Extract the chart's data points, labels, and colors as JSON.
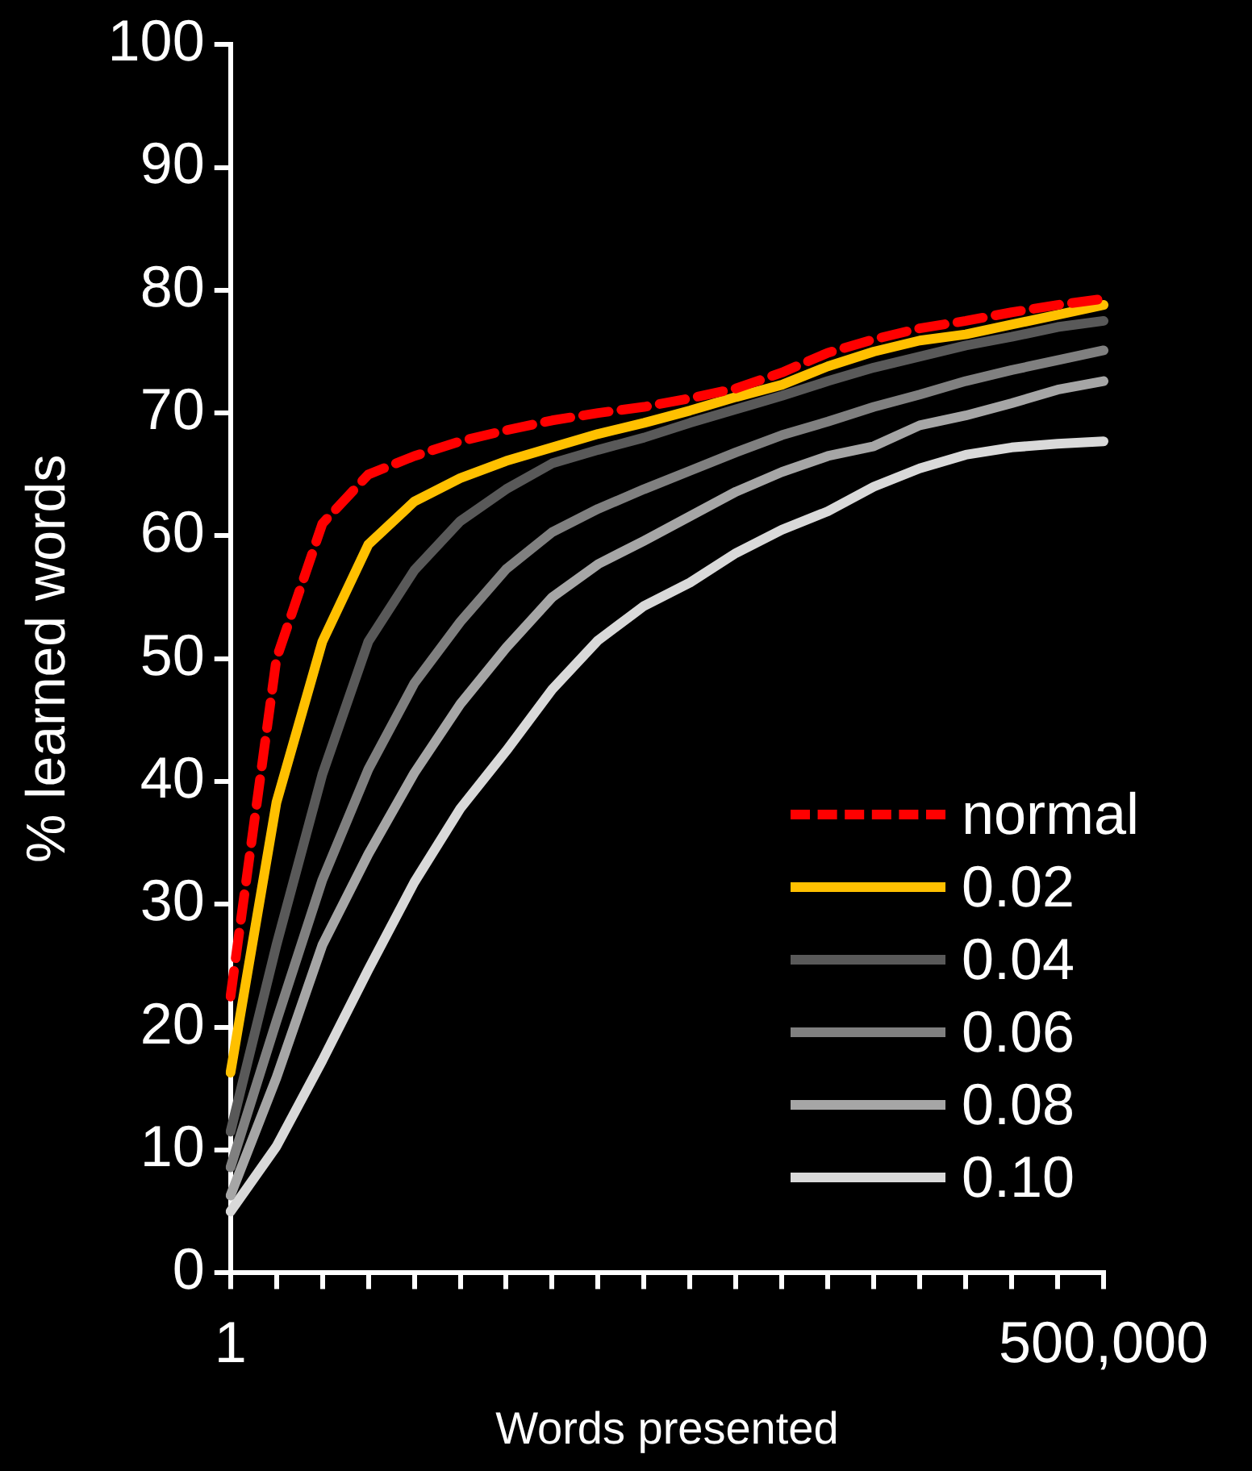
{
  "chart_data": {
    "type": "line",
    "xlabel": "Words presented",
    "ylabel": "% learned words",
    "categories": [
      "1",
      null,
      null,
      null,
      null,
      null,
      null,
      null,
      null,
      null,
      null,
      null,
      null,
      null,
      null,
      null,
      null,
      null,
      null,
      "500,000"
    ],
    "ylim": [
      0,
      100
    ],
    "yticks": [
      0,
      10,
      20,
      30,
      40,
      50,
      60,
      70,
      80,
      90,
      100
    ],
    "grid": false,
    "legend": "bottom right",
    "marker": "none",
    "series": [
      {
        "name": "normal",
        "color": "#ff0000",
        "line_style": "dashed",
        "values": [
          22.5,
          50,
          61,
          65,
          66.5,
          67.7,
          68.6,
          69.4,
          70,
          70.5,
          71.2,
          72,
          73.3,
          74.9,
          76,
          76.9,
          77.5,
          78.2,
          78.8,
          79.3
        ]
      },
      {
        "name": "0.02",
        "color": "#ffc000",
        "line_style": "solid",
        "values": [
          16.3,
          38.3,
          51.4,
          59.3,
          62.8,
          64.7,
          66.1,
          67.2,
          68.3,
          69.2,
          70.2,
          71.3,
          72.3,
          73.8,
          75,
          75.9,
          76.4,
          77.2,
          78,
          78.8
        ]
      },
      {
        "name": "0.04",
        "color": "#595959",
        "line_style": "solid",
        "values": [
          11.5,
          26.7,
          40.6,
          51.4,
          57.2,
          61.2,
          63.8,
          65.9,
          67,
          68,
          69.2,
          70.3,
          71.4,
          72.6,
          73.7,
          74.6,
          75.5,
          76.2,
          77,
          77.5
        ]
      },
      {
        "name": "0.06",
        "color": "#808080",
        "line_style": "solid",
        "values": [
          8.6,
          20.5,
          32,
          41,
          48,
          53,
          57.3,
          60.3,
          62.2,
          63.8,
          65.3,
          66.8,
          68.2,
          69.3,
          70.5,
          71.5,
          72.6,
          73.5,
          74.3,
          75.1
        ]
      },
      {
        "name": "0.08",
        "color": "#a6a6a6",
        "line_style": "solid",
        "values": [
          6.3,
          15.9,
          26.7,
          34.1,
          40.7,
          46.3,
          50.9,
          55,
          57.7,
          59.6,
          61.6,
          63.6,
          65.2,
          66.5,
          67.3,
          69,
          69.8,
          70.8,
          71.9,
          72.6
        ]
      },
      {
        "name": "0.10",
        "color": "#d9d9d9",
        "line_style": "solid",
        "values": [
          5,
          10.3,
          17.3,
          24.7,
          31.8,
          37.8,
          42.5,
          47.5,
          51.5,
          54.3,
          56.2,
          58.6,
          60.5,
          62,
          64,
          65.5,
          66.6,
          67.2,
          67.5,
          67.7
        ]
      }
    ]
  }
}
